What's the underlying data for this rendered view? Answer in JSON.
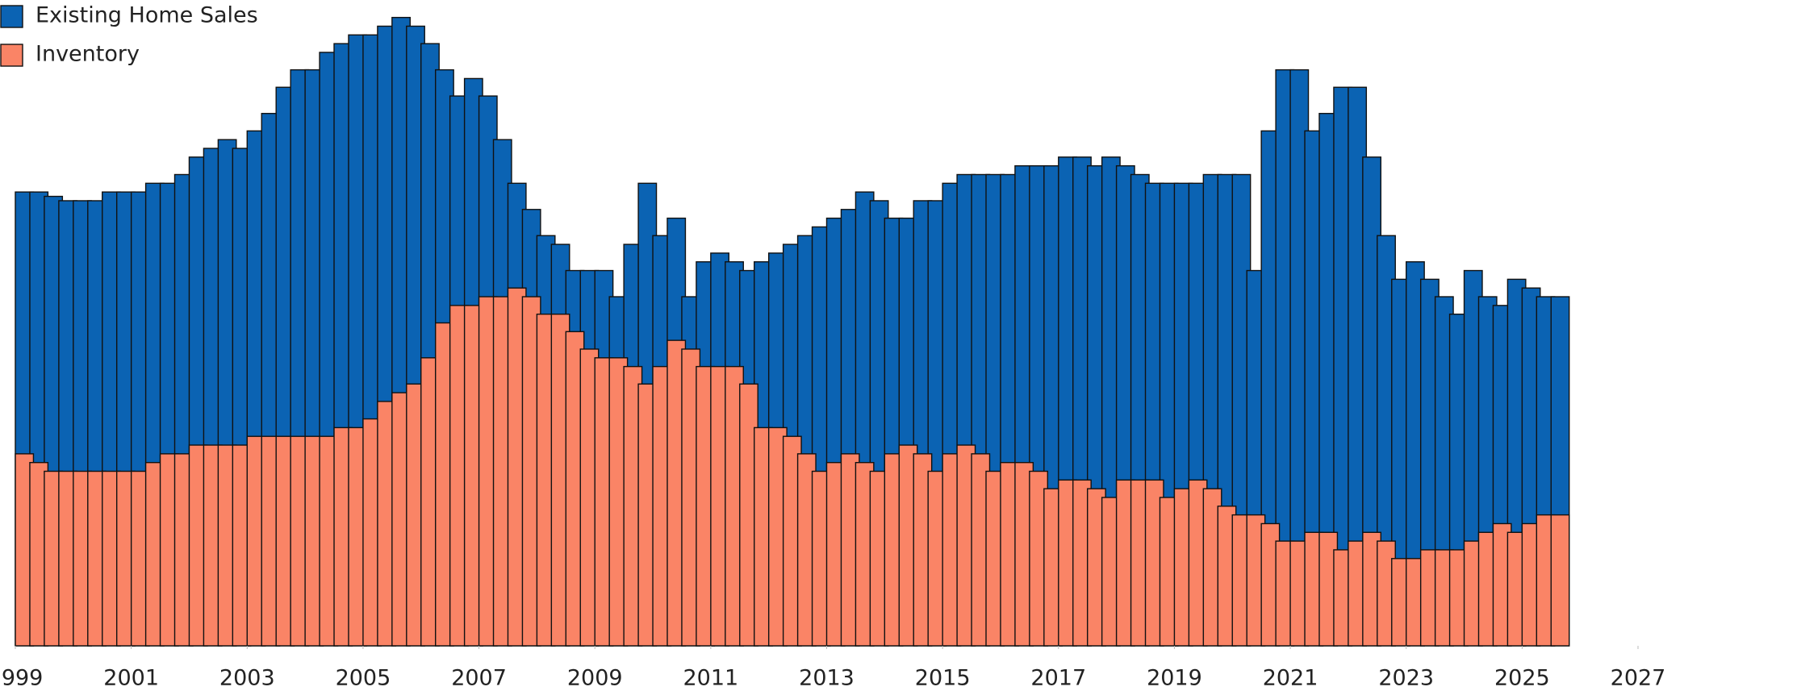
{
  "chart_data": {
    "type": "bar",
    "x": [
      1999,
      1999.25,
      1999.5,
      1999.75,
      2000,
      2000.25,
      2000.5,
      2000.75,
      2001,
      2001.25,
      2001.5,
      2001.75,
      2002,
      2002.25,
      2002.5,
      2002.75,
      2003,
      2003.25,
      2003.5,
      2003.75,
      2004,
      2004.25,
      2004.5,
      2004.75,
      2005,
      2005.25,
      2005.5,
      2005.75,
      2006,
      2006.25,
      2006.5,
      2006.75,
      2007,
      2007.25,
      2007.5,
      2007.75,
      2008,
      2008.25,
      2008.5,
      2008.75,
      2009,
      2009.25,
      2009.5,
      2009.75,
      2010,
      2010.25,
      2010.5,
      2010.75,
      2011,
      2011.25,
      2011.5,
      2011.75,
      2012,
      2012.25,
      2012.5,
      2012.75,
      2013,
      2013.25,
      2013.5,
      2013.75,
      2014,
      2014.25,
      2014.5,
      2014.75,
      2015,
      2015.25,
      2015.5,
      2015.75,
      2016,
      2016.25,
      2016.5,
      2016.75,
      2017,
      2017.25,
      2017.5,
      2017.75,
      2018,
      2018.25,
      2018.5,
      2018.75,
      2019,
      2019.25,
      2019.5,
      2019.75,
      2020,
      2020.25,
      2020.5,
      2020.75,
      2021,
      2021.25,
      2021.5,
      2021.75,
      2022,
      2022.25,
      2022.5,
      2022.75,
      2023,
      2023.25,
      2023.5,
      2023.75,
      2024,
      2024.25,
      2024.5,
      2024.75,
      2025,
      2025.25,
      2025.5
    ],
    "series": [
      {
        "name": "Existing Home Sales",
        "color": "#0b63b3",
        "values": [
          5.2,
          5.2,
          5.15,
          5.1,
          5.1,
          5.1,
          5.2,
          5.2,
          5.2,
          5.3,
          5.3,
          5.4,
          5.6,
          5.7,
          5.8,
          5.7,
          5.9,
          6.1,
          6.4,
          6.6,
          6.6,
          6.8,
          6.9,
          7.0,
          7.0,
          7.1,
          7.2,
          7.1,
          6.9,
          6.6,
          6.3,
          6.5,
          6.3,
          5.8,
          5.3,
          5.0,
          4.7,
          4.6,
          4.3,
          4.3,
          4.3,
          4.0,
          4.6,
          5.3,
          4.7,
          4.9,
          4.0,
          4.4,
          4.5,
          4.4,
          4.3,
          4.4,
          4.5,
          4.6,
          4.7,
          4.8,
          4.9,
          5.0,
          5.2,
          5.1,
          4.9,
          4.9,
          5.1,
          5.1,
          5.3,
          5.4,
          5.4,
          5.4,
          5.4,
          5.5,
          5.5,
          5.5,
          5.6,
          5.6,
          5.5,
          5.6,
          5.5,
          5.4,
          5.3,
          5.3,
          5.3,
          5.3,
          5.4,
          5.4,
          5.4,
          4.3,
          5.9,
          6.6,
          6.6,
          5.9,
          6.1,
          6.4,
          6.4,
          5.6,
          4.7,
          4.2,
          4.4,
          4.2,
          4.0,
          3.8,
          4.3,
          4.0,
          3.9,
          4.2,
          4.1,
          4.0,
          4.0
        ]
      },
      {
        "name": "Inventory",
        "color": "#fa8466",
        "values": [
          2.2,
          2.1,
          2.0,
          2.0,
          2.0,
          2.0,
          2.0,
          2.0,
          2.0,
          2.1,
          2.2,
          2.2,
          2.3,
          2.3,
          2.3,
          2.3,
          2.4,
          2.4,
          2.4,
          2.4,
          2.4,
          2.4,
          2.5,
          2.5,
          2.6,
          2.8,
          2.9,
          3.0,
          3.3,
          3.7,
          3.9,
          3.9,
          4.0,
          4.0,
          4.1,
          4.0,
          3.8,
          3.8,
          3.6,
          3.4,
          3.3,
          3.3,
          3.2,
          3.0,
          3.2,
          3.5,
          3.4,
          3.2,
          3.2,
          3.2,
          3.0,
          2.5,
          2.5,
          2.4,
          2.2,
          2.0,
          2.1,
          2.2,
          2.1,
          2.0,
          2.2,
          2.3,
          2.2,
          2.0,
          2.2,
          2.3,
          2.2,
          2.0,
          2.1,
          2.1,
          2.0,
          1.8,
          1.9,
          1.9,
          1.8,
          1.7,
          1.9,
          1.9,
          1.9,
          1.7,
          1.8,
          1.9,
          1.8,
          1.6,
          1.5,
          1.5,
          1.4,
          1.2,
          1.2,
          1.3,
          1.3,
          1.1,
          1.2,
          1.3,
          1.2,
          1.0,
          1.0,
          1.1,
          1.1,
          1.1,
          1.2,
          1.3,
          1.4,
          1.3,
          1.4,
          1.5,
          1.5
        ]
      }
    ],
    "xlim": [
      1999,
      2027
    ],
    "xticks": [
      1999,
      2001,
      2003,
      2005,
      2007,
      2009,
      2011,
      2013,
      2015,
      2017,
      2019,
      2021,
      2023,
      2025,
      2027
    ],
    "ylim": [
      0,
      7.4
    ],
    "legend": "top-left"
  }
}
